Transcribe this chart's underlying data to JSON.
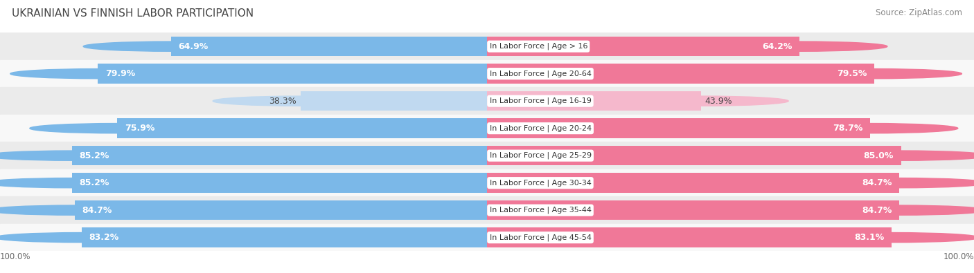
{
  "title": "UKRAINIAN VS FINNISH LABOR PARTICIPATION",
  "source": "Source: ZipAtlas.com",
  "categories": [
    "In Labor Force | Age > 16",
    "In Labor Force | Age 20-64",
    "In Labor Force | Age 16-19",
    "In Labor Force | Age 20-24",
    "In Labor Force | Age 25-29",
    "In Labor Force | Age 30-34",
    "In Labor Force | Age 35-44",
    "In Labor Force | Age 45-54"
  ],
  "ukrainian_values": [
    64.9,
    79.9,
    38.3,
    75.9,
    85.2,
    85.2,
    84.7,
    83.2
  ],
  "finnish_values": [
    64.2,
    79.5,
    43.9,
    78.7,
    85.0,
    84.7,
    84.7,
    83.1
  ],
  "ukrainian_color": "#7BB8E8",
  "ukrainian_color_light": "#C0D9F0",
  "finnish_color": "#F07898",
  "finnish_color_light": "#F5B8CC",
  "row_bg_odd": "#EBEBEB",
  "row_bg_even": "#F8F8F8",
  "bar_bg_color": "#E8E8E8",
  "max_value": 100.0,
  "label_fontsize": 9.0,
  "cat_fontsize": 8.0,
  "title_fontsize": 11,
  "legend_fontsize": 9,
  "bar_height": 0.72,
  "background_color": "#FFFFFF",
  "axis_label_color": "#666666",
  "title_color": "#444444",
  "source_color": "#888888"
}
